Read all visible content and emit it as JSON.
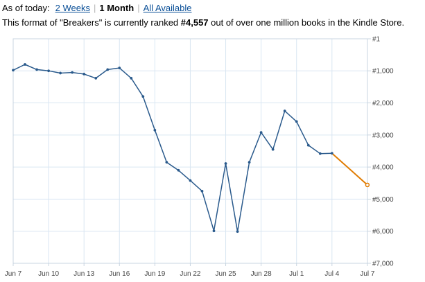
{
  "range_selector": {
    "prefix": "As of today:",
    "options": [
      {
        "label": "2 Weeks",
        "active": false
      },
      {
        "label": "1 Month",
        "active": true
      },
      {
        "label": "All Available",
        "active": false
      }
    ]
  },
  "rank_sentence": {
    "before": "This format of \"Breakers\" is currently ranked ",
    "rank": "#4,557",
    "after": " out of over one million books in the Kindle Store."
  },
  "colors": {
    "series_line": "#2a5a8c",
    "latest_segment": "#e07b00",
    "gridline": "#d9e6f2",
    "plot_border": "#c8d4e0"
  },
  "chart_data": {
    "type": "line",
    "xlabel": "",
    "ylabel": "",
    "x_ticks": [
      "Jun 7",
      "Jun 10",
      "Jun 13",
      "Jun 16",
      "Jun 19",
      "Jun 22",
      "Jun 25",
      "Jun 28",
      "Jul 1",
      "Jul 4",
      "Jul 7"
    ],
    "y_ticks": [
      "#1",
      "#1,000",
      "#2,000",
      "#3,000",
      "#4,000",
      "#5,000",
      "#6,000",
      "#7,000"
    ],
    "ylim": [
      1,
      7000
    ],
    "y_inverted": true,
    "grid": true,
    "series": [
      {
        "dates": [
          "Jun 7",
          "Jun 8",
          "Jun 9",
          "Jun 10",
          "Jun 11",
          "Jun 12",
          "Jun 13",
          "Jun 14",
          "Jun 15",
          "Jun 16",
          "Jun 17",
          "Jun 18",
          "Jun 19",
          "Jun 20",
          "Jun 21",
          "Jun 22",
          "Jun 23",
          "Jun 24",
          "Jun 25",
          "Jun 26",
          "Jun 27",
          "Jun 28",
          "Jun 29",
          "Jun 30",
          "Jul 1",
          "Jul 2",
          "Jul 3",
          "Jul 4",
          "Jul 7"
        ],
        "values": [
          980,
          800,
          960,
          1000,
          1070,
          1050,
          1100,
          1230,
          960,
          910,
          1230,
          1800,
          2850,
          3850,
          4100,
          4420,
          4750,
          5990,
          3890,
          6010,
          3850,
          2920,
          3450,
          2250,
          2580,
          3320,
          3580,
          3570,
          4557
        ],
        "line_dates": [
          "Jun 7",
          "Jun 8",
          "Jun 9",
          "Jun 10",
          "Jun 11",
          "Jun 12",
          "Jun 13",
          "Jun 14",
          "Jun 15",
          "Jun 16",
          "Jun 17",
          "Jun 18",
          "Jun 19",
          "Jun 20",
          "Jun 21",
          "Jun 22",
          "Jun 23",
          "Jun 24",
          "Jun 25",
          "Jun 26",
          "Jun 27",
          "Jun 28",
          "Jun 29",
          "Jun 30",
          "Jul 1",
          "Jul 2",
          "Jul 3",
          "Jul 4"
        ],
        "latest_segment_dates": [
          "Jul 4",
          "Jul 7"
        ]
      }
    ]
  }
}
